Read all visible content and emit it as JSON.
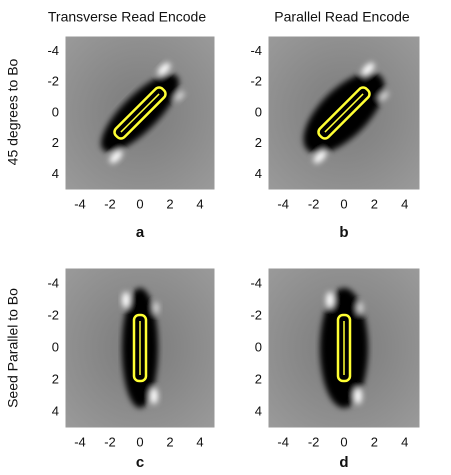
{
  "columns": [
    "Transverse Read Encode",
    "Parallel Read Encode"
  ],
  "rows": [
    "45 degrees to Bo",
    "Seed Parallel to Bo"
  ],
  "panels": [
    {
      "label": "a",
      "xlim": [
        -5,
        5
      ],
      "ylim": [
        -5,
        5
      ],
      "xticks": [
        -4,
        -2,
        0,
        2,
        4
      ],
      "yticks": [
        -4,
        -2,
        0,
        2,
        4
      ]
    },
    {
      "label": "b",
      "xlim": [
        -5,
        5
      ],
      "ylim": [
        -5,
        5
      ],
      "xticks": [
        -4,
        -2,
        0,
        2,
        4
      ],
      "yticks": [
        -4,
        -2,
        0,
        2,
        4
      ]
    },
    {
      "label": "c",
      "xlim": [
        -5,
        5
      ],
      "ylim": [
        -5,
        5
      ],
      "xticks": [
        -4,
        -2,
        0,
        2,
        4
      ],
      "yticks": [
        -4,
        -2,
        0,
        2,
        4
      ]
    },
    {
      "label": "d",
      "xlim": [
        -5,
        5
      ],
      "ylim": [
        -5,
        5
      ],
      "xticks": [
        -4,
        -2,
        0,
        2,
        4
      ],
      "yticks": [
        -4,
        -2,
        0,
        2,
        4
      ]
    }
  ]
}
